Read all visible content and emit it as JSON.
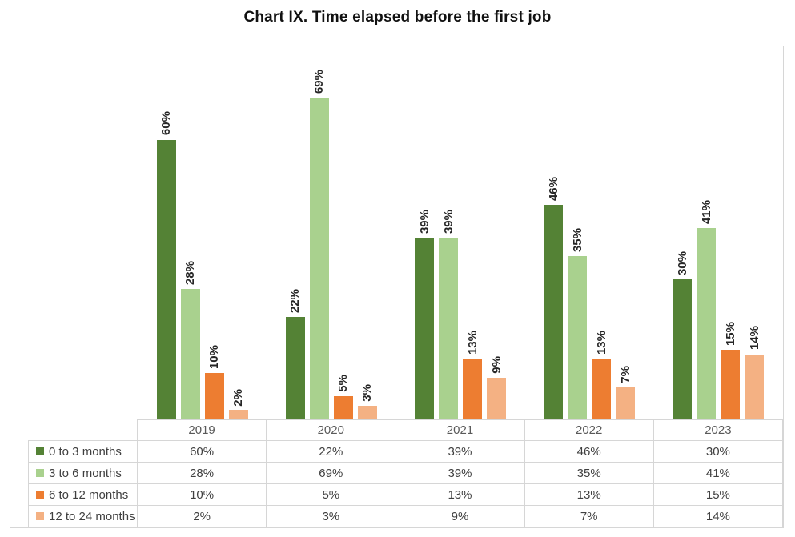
{
  "chart_data": {
    "type": "bar",
    "title": "Chart IX. Time elapsed before the first job",
    "categories": [
      "2019",
      "2020",
      "2021",
      "2022",
      "2023"
    ],
    "series": [
      {
        "name": "0 to 3 months",
        "color": "#548235",
        "values": [
          60,
          22,
          39,
          46,
          30
        ],
        "labels": [
          "60%",
          "22%",
          "39%",
          "46%",
          "30%"
        ]
      },
      {
        "name": "3 to 6 months",
        "color": "#a9d18e",
        "values": [
          28,
          69,
          39,
          35,
          41
        ],
        "labels": [
          "28%",
          "69%",
          "39%",
          "35%",
          "41%"
        ]
      },
      {
        "name": "6 to 12 months",
        "color": "#ed7d31",
        "values": [
          10,
          5,
          13,
          13,
          15
        ],
        "labels": [
          "10%",
          "5%",
          "13%",
          "13%",
          "15%"
        ]
      },
      {
        "name": "12 to 24 months",
        "color": "#f4b183",
        "values": [
          2,
          3,
          9,
          7,
          14
        ],
        "labels": [
          "2%",
          "3%",
          "9%",
          "7%",
          "14%"
        ]
      }
    ],
    "ylim": [
      0,
      80
    ],
    "value_unit": "%",
    "grid": false,
    "data_labels": "rotated-90-above-bars",
    "legend_position": "data-table-left-column",
    "frame_border_color": "#d6d6d6"
  }
}
